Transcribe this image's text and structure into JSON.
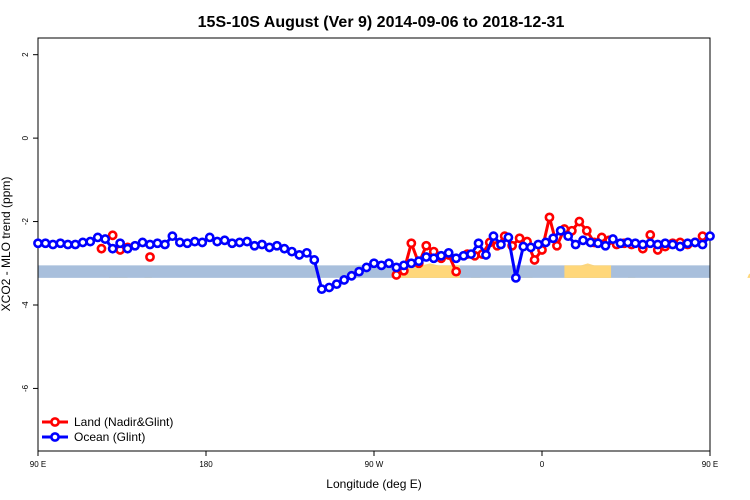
{
  "chart_data": {
    "type": "line",
    "title": "15S-10S August (Ver 9)   2014-09-06 to 2018-12-31",
    "xlabel": "Longitude (deg E)",
    "ylabel": "XCO2 - MLO trend (ppm)",
    "xlim": [
      90,
      450
    ],
    "ylim": [
      -7.5,
      2.4
    ],
    "x_ticks": [
      {
        "value": 90,
        "label": "90 E"
      },
      {
        "value": 180,
        "label": "180"
      },
      {
        "value": 270,
        "label": "90 W"
      },
      {
        "value": 360,
        "label": "0"
      },
      {
        "value": 450,
        "label": "90 E"
      },
      {
        "value": 540,
        "label": "180"
      }
    ],
    "y_ticks": [
      {
        "value": 2,
        "label": "2"
      },
      {
        "value": 0,
        "label": "0"
      },
      {
        "value": -2,
        "label": "-2"
      },
      {
        "value": -4,
        "label": "-4"
      },
      {
        "value": -6,
        "label": "-6"
      }
    ],
    "legend_position": "bottom-left",
    "land_band": {
      "y_top": -3.05,
      "y_bottom": -3.35,
      "color": "#a8bfdc"
    },
    "land_mask_color": "#ffd77a",
    "land_mask": [
      [
        128,
        133,
        0.45
      ],
      [
        133,
        138,
        0.25
      ],
      [
        147,
        151,
        0.5
      ],
      [
        284,
        316,
        1.0
      ],
      [
        322,
        327,
        0.8
      ],
      [
        345,
        355,
        0.5
      ],
      [
        372,
        397,
        1.0
      ],
      [
        406,
        410,
        0.6
      ],
      [
        470,
        474,
        0.35
      ],
      [
        479,
        487,
        0.55
      ],
      [
        500,
        503,
        0.85
      ]
    ],
    "series": [
      {
        "name": "Land (Nadir&Glint)",
        "color": "#ff0000",
        "x": [
          124,
          130,
          134,
          138,
          150,
          282,
          286,
          290,
          294,
          298,
          302,
          306,
          310,
          314,
          320,
          324,
          328,
          332,
          336,
          340,
          344,
          348,
          352,
          356,
          360,
          364,
          368,
          372,
          376,
          380,
          384,
          388,
          392,
          396,
          400,
          404,
          408,
          414,
          418,
          422,
          426,
          430,
          434,
          438,
          442,
          446
        ],
        "y": [
          -2.65,
          -2.33,
          -2.68,
          -2.62,
          -2.85,
          -3.28,
          -3.18,
          -2.52,
          -3.0,
          -2.58,
          -2.72,
          -2.88,
          -2.8,
          -3.2,
          -2.78,
          -2.82,
          -2.78,
          -2.5,
          -2.58,
          -2.35,
          -2.58,
          -2.4,
          -2.48,
          -2.92,
          -2.68,
          -1.9,
          -2.58,
          -2.18,
          -2.22,
          -2.0,
          -2.22,
          -2.5,
          -2.38,
          -2.45,
          -2.55,
          -2.52,
          -2.55,
          -2.65,
          -2.32,
          -2.68,
          -2.6,
          -2.52,
          -2.5,
          -2.55,
          -2.5,
          -2.35
        ],
        "segments": [
          [
            282,
            314
          ],
          [
            326,
            400
          ]
        ]
      },
      {
        "name": "Ocean (Glint)",
        "color": "#0000ff",
        "x": [
          90,
          94,
          98,
          102,
          106,
          110,
          114,
          118,
          122,
          126,
          130,
          134,
          138,
          142,
          146,
          150,
          154,
          158,
          162,
          166,
          170,
          174,
          178,
          182,
          186,
          190,
          194,
          198,
          202,
          206,
          210,
          214,
          218,
          222,
          226,
          230,
          234,
          238,
          242,
          246,
          250,
          254,
          258,
          262,
          266,
          270,
          274,
          278,
          282,
          286,
          290,
          294,
          298,
          302,
          306,
          310,
          314,
          318,
          322,
          326,
          330,
          334,
          338,
          342,
          346,
          350,
          354,
          358,
          362,
          366,
          370,
          374,
          378,
          382,
          386,
          390,
          394,
          398,
          402,
          406,
          410,
          414,
          418,
          422,
          426,
          430,
          434,
          438,
          442,
          446,
          450
        ],
        "y": [
          -2.52,
          -2.52,
          -2.55,
          -2.52,
          -2.55,
          -2.55,
          -2.5,
          -2.48,
          -2.38,
          -2.42,
          -2.65,
          -2.52,
          -2.65,
          -2.58,
          -2.5,
          -2.55,
          -2.52,
          -2.55,
          -2.35,
          -2.5,
          -2.52,
          -2.48,
          -2.5,
          -2.38,
          -2.48,
          -2.45,
          -2.52,
          -2.5,
          -2.48,
          -2.58,
          -2.55,
          -2.62,
          -2.58,
          -2.65,
          -2.72,
          -2.8,
          -2.75,
          -2.92,
          -3.62,
          -3.58,
          -3.5,
          -3.4,
          -3.3,
          -3.2,
          -3.1,
          -3.0,
          -3.05,
          -3.0,
          -3.1,
          -3.05,
          -3.0,
          -2.95,
          -2.85,
          -2.88,
          -2.82,
          -2.75,
          -2.88,
          -2.82,
          -2.78,
          -2.52,
          -2.8,
          -2.35,
          -2.55,
          -2.38,
          -3.35,
          -2.6,
          -2.62,
          -2.55,
          -2.5,
          -2.4,
          -2.22,
          -2.35,
          -2.55,
          -2.45,
          -2.5,
          -2.52,
          -2.58,
          -2.42,
          -2.52,
          -2.5,
          -2.52,
          -2.55,
          -2.52,
          -2.55,
          -2.52,
          -2.55,
          -2.6,
          -2.52,
          -2.5,
          -2.55,
          -2.35
        ],
        "segments": [
          [
            90,
            242
          ],
          [
            286,
            450
          ]
        ]
      }
    ]
  }
}
